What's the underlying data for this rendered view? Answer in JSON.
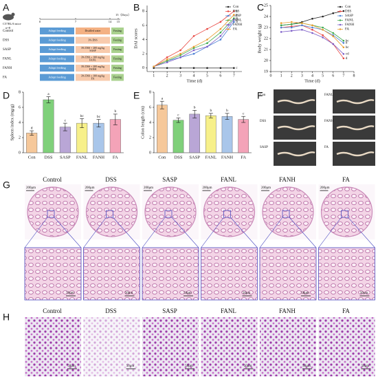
{
  "panel_labels": [
    "A",
    "B",
    "C",
    "D",
    "E",
    "F",
    "G",
    "H"
  ],
  "scheme": {
    "mouse": "C57BL/6 mice",
    "n": "n=8",
    "end_label": "15（Days）",
    "timeline_ticks": [
      "0",
      "7",
      "14",
      "15"
    ],
    "rows": [
      {
        "group": "Control",
        "first": "Adapt feeding",
        "middle": [
          "Distilled water"
        ],
        "last": "Fasting"
      },
      {
        "group": "DSS",
        "first": "Adapt feeding",
        "middle": [
          "3% DSS"
        ],
        "last": "Fasting"
      },
      {
        "group": "SASP",
        "first": "Adapt feeding",
        "middle": [
          "3% DSS + 200 mg/kg",
          "SASP"
        ],
        "last": "Fasting"
      },
      {
        "group": "FANL",
        "first": "Adapt feeding",
        "middle": [
          "3% DSS + 100 mg/kg",
          "FANL"
        ],
        "last": "Fasting"
      },
      {
        "group": "FANH",
        "first": "Adapt feeding",
        "middle": [
          "3% DSS + 200 mg/kg",
          "FANH"
        ],
        "last": "Fasting"
      },
      {
        "group": "FA",
        "first": "Adapt feeding",
        "middle": [
          "3% DSS + 100 mg/kg",
          "FA"
        ],
        "last": "Fasting"
      }
    ]
  },
  "chart_data": [
    {
      "type": "line",
      "x_label": "Time (d)",
      "y_label": "DAI scores",
      "legend": "upper right",
      "x": [
        1,
        2,
        3,
        4,
        5,
        6,
        7
      ],
      "xlim": [
        0.5,
        7.6
      ],
      "xticks": [
        1,
        2,
        3,
        4,
        5,
        6,
        7
      ],
      "ylim": [
        -0.5,
        8.8
      ],
      "yticks": [
        0,
        2,
        4,
        6,
        8
      ],
      "series": [
        {
          "name": "Con",
          "color": "#222222",
          "values": [
            0,
            0,
            0,
            0,
            0,
            0,
            0
          ],
          "letter": "c"
        },
        {
          "name": "DSS",
          "color": "#e8433d",
          "values": [
            0.2,
            1.5,
            2.5,
            4.5,
            5.5,
            6.5,
            8
          ],
          "letter": "a"
        },
        {
          "name": "SASP",
          "color": "#4a7fd4",
          "values": [
            0.2,
            1,
            1.5,
            2,
            3,
            4,
            6.5
          ],
          "letter": "b"
        },
        {
          "name": "FANL",
          "color": "#3aa84a",
          "values": [
            0.2,
            1,
            1.8,
            2.8,
            3.5,
            5,
            7
          ],
          "letter": "b"
        },
        {
          "name": "FANH",
          "color": "#7b5cc7",
          "values": [
            0.2,
            0.8,
            1.5,
            2.5,
            3,
            4.5,
            6.8
          ],
          "letter": "b"
        },
        {
          "name": "FA",
          "color": "#e89a2c",
          "values": [
            0.2,
            1.2,
            2,
            3,
            4,
            5.5,
            7.5
          ],
          "letter": "a"
        }
      ]
    },
    {
      "type": "line",
      "x_label": "Time (d)",
      "y_label": "Body weight (g)",
      "legend": "upper right",
      "x": [
        1,
        2,
        3,
        4,
        5,
        6,
        7
      ],
      "xlim": [
        0,
        8
      ],
      "xticks": [
        0,
        1,
        2,
        3,
        4,
        5,
        6,
        7,
        8
      ],
      "ylim": [
        19,
        25
      ],
      "yticks": [
        19,
        20,
        21,
        22,
        23,
        24,
        25
      ],
      "series": [
        {
          "name": "Con",
          "color": "#222222",
          "values": [
            23.2,
            23.3,
            23.5,
            23.8,
            24,
            24.3,
            24.5
          ]
        },
        {
          "name": "DSS",
          "color": "#e8433d",
          "values": [
            23,
            23.1,
            23.2,
            22.8,
            22.3,
            21.5,
            20.2
          ],
          "letter": "d"
        },
        {
          "name": "SASP",
          "color": "#4a7fd4",
          "values": [
            23,
            23,
            23.2,
            23,
            22.8,
            22.3,
            21.6
          ],
          "letter": "b"
        },
        {
          "name": "FANL",
          "color": "#3aa84a",
          "values": [
            23.2,
            23.3,
            23.4,
            23.2,
            23,
            22.5,
            21.8
          ],
          "letter": "bc"
        },
        {
          "name": "FANH",
          "color": "#7b5cc7",
          "values": [
            22.6,
            22.7,
            22.8,
            22.5,
            22.1,
            21.5,
            20.6
          ],
          "letter": "cd"
        },
        {
          "name": "FA",
          "color": "#e89a2c",
          "values": [
            23.4,
            23.5,
            23.4,
            23.2,
            22.8,
            22.2,
            21.2
          ],
          "letter": "bc"
        }
      ]
    },
    {
      "type": "bar",
      "y_label": "Spleen index (mg/g)",
      "categories": [
        "Con",
        "DSS",
        "SASP",
        "FANL",
        "FANH",
        "FA"
      ],
      "values": [
        2.6,
        7,
        3.4,
        3.9,
        3.9,
        4.4
      ],
      "errors": [
        0.3,
        0.4,
        0.5,
        0.6,
        0.5,
        0.7
      ],
      "letters": [
        "d",
        "a",
        "c",
        "bc",
        "bc",
        "b"
      ],
      "colors": [
        "#f6c89a",
        "#7fd07a",
        "#b9a6d6",
        "#f7f08a",
        "#a9c6ea",
        "#f4a3b8"
      ],
      "ylim": [
        0,
        8
      ],
      "yticks": [
        0,
        2,
        4,
        6,
        8
      ]
    },
    {
      "type": "bar",
      "y_label": "Colon length (cm)",
      "categories": [
        "Con",
        "DSS",
        "SASP",
        "FANL",
        "FANH",
        "FA"
      ],
      "values": [
        6.3,
        4.3,
        5.1,
        4.9,
        4.8,
        4.4
      ],
      "errors": [
        0.5,
        0.3,
        0.5,
        0.3,
        0.4,
        0.4
      ],
      "letters": [
        "a",
        "c",
        "b",
        "b",
        "b",
        "c"
      ],
      "colors": [
        "#f6c89a",
        "#7fd07a",
        "#b9a6d6",
        "#f7f08a",
        "#a9c6ea",
        "#f4a3b8"
      ],
      "ylim": [
        0,
        8
      ],
      "yticks": [
        0,
        2,
        4,
        6,
        8
      ]
    }
  ],
  "photos": {
    "labels": [
      "Con",
      "DSS",
      "SASP",
      "FANL",
      "FANH",
      "FA"
    ]
  },
  "histology": {
    "groups": [
      "Control",
      "DSS",
      "SASP",
      "FANL",
      "FANH",
      "FA"
    ],
    "scale_low": "200μm",
    "scale_high": "50μm"
  },
  "staining": {
    "groups": [
      "Control",
      "DSS",
      "SASP",
      "FANL",
      "FANH",
      "FA"
    ],
    "scale": "50μm"
  }
}
